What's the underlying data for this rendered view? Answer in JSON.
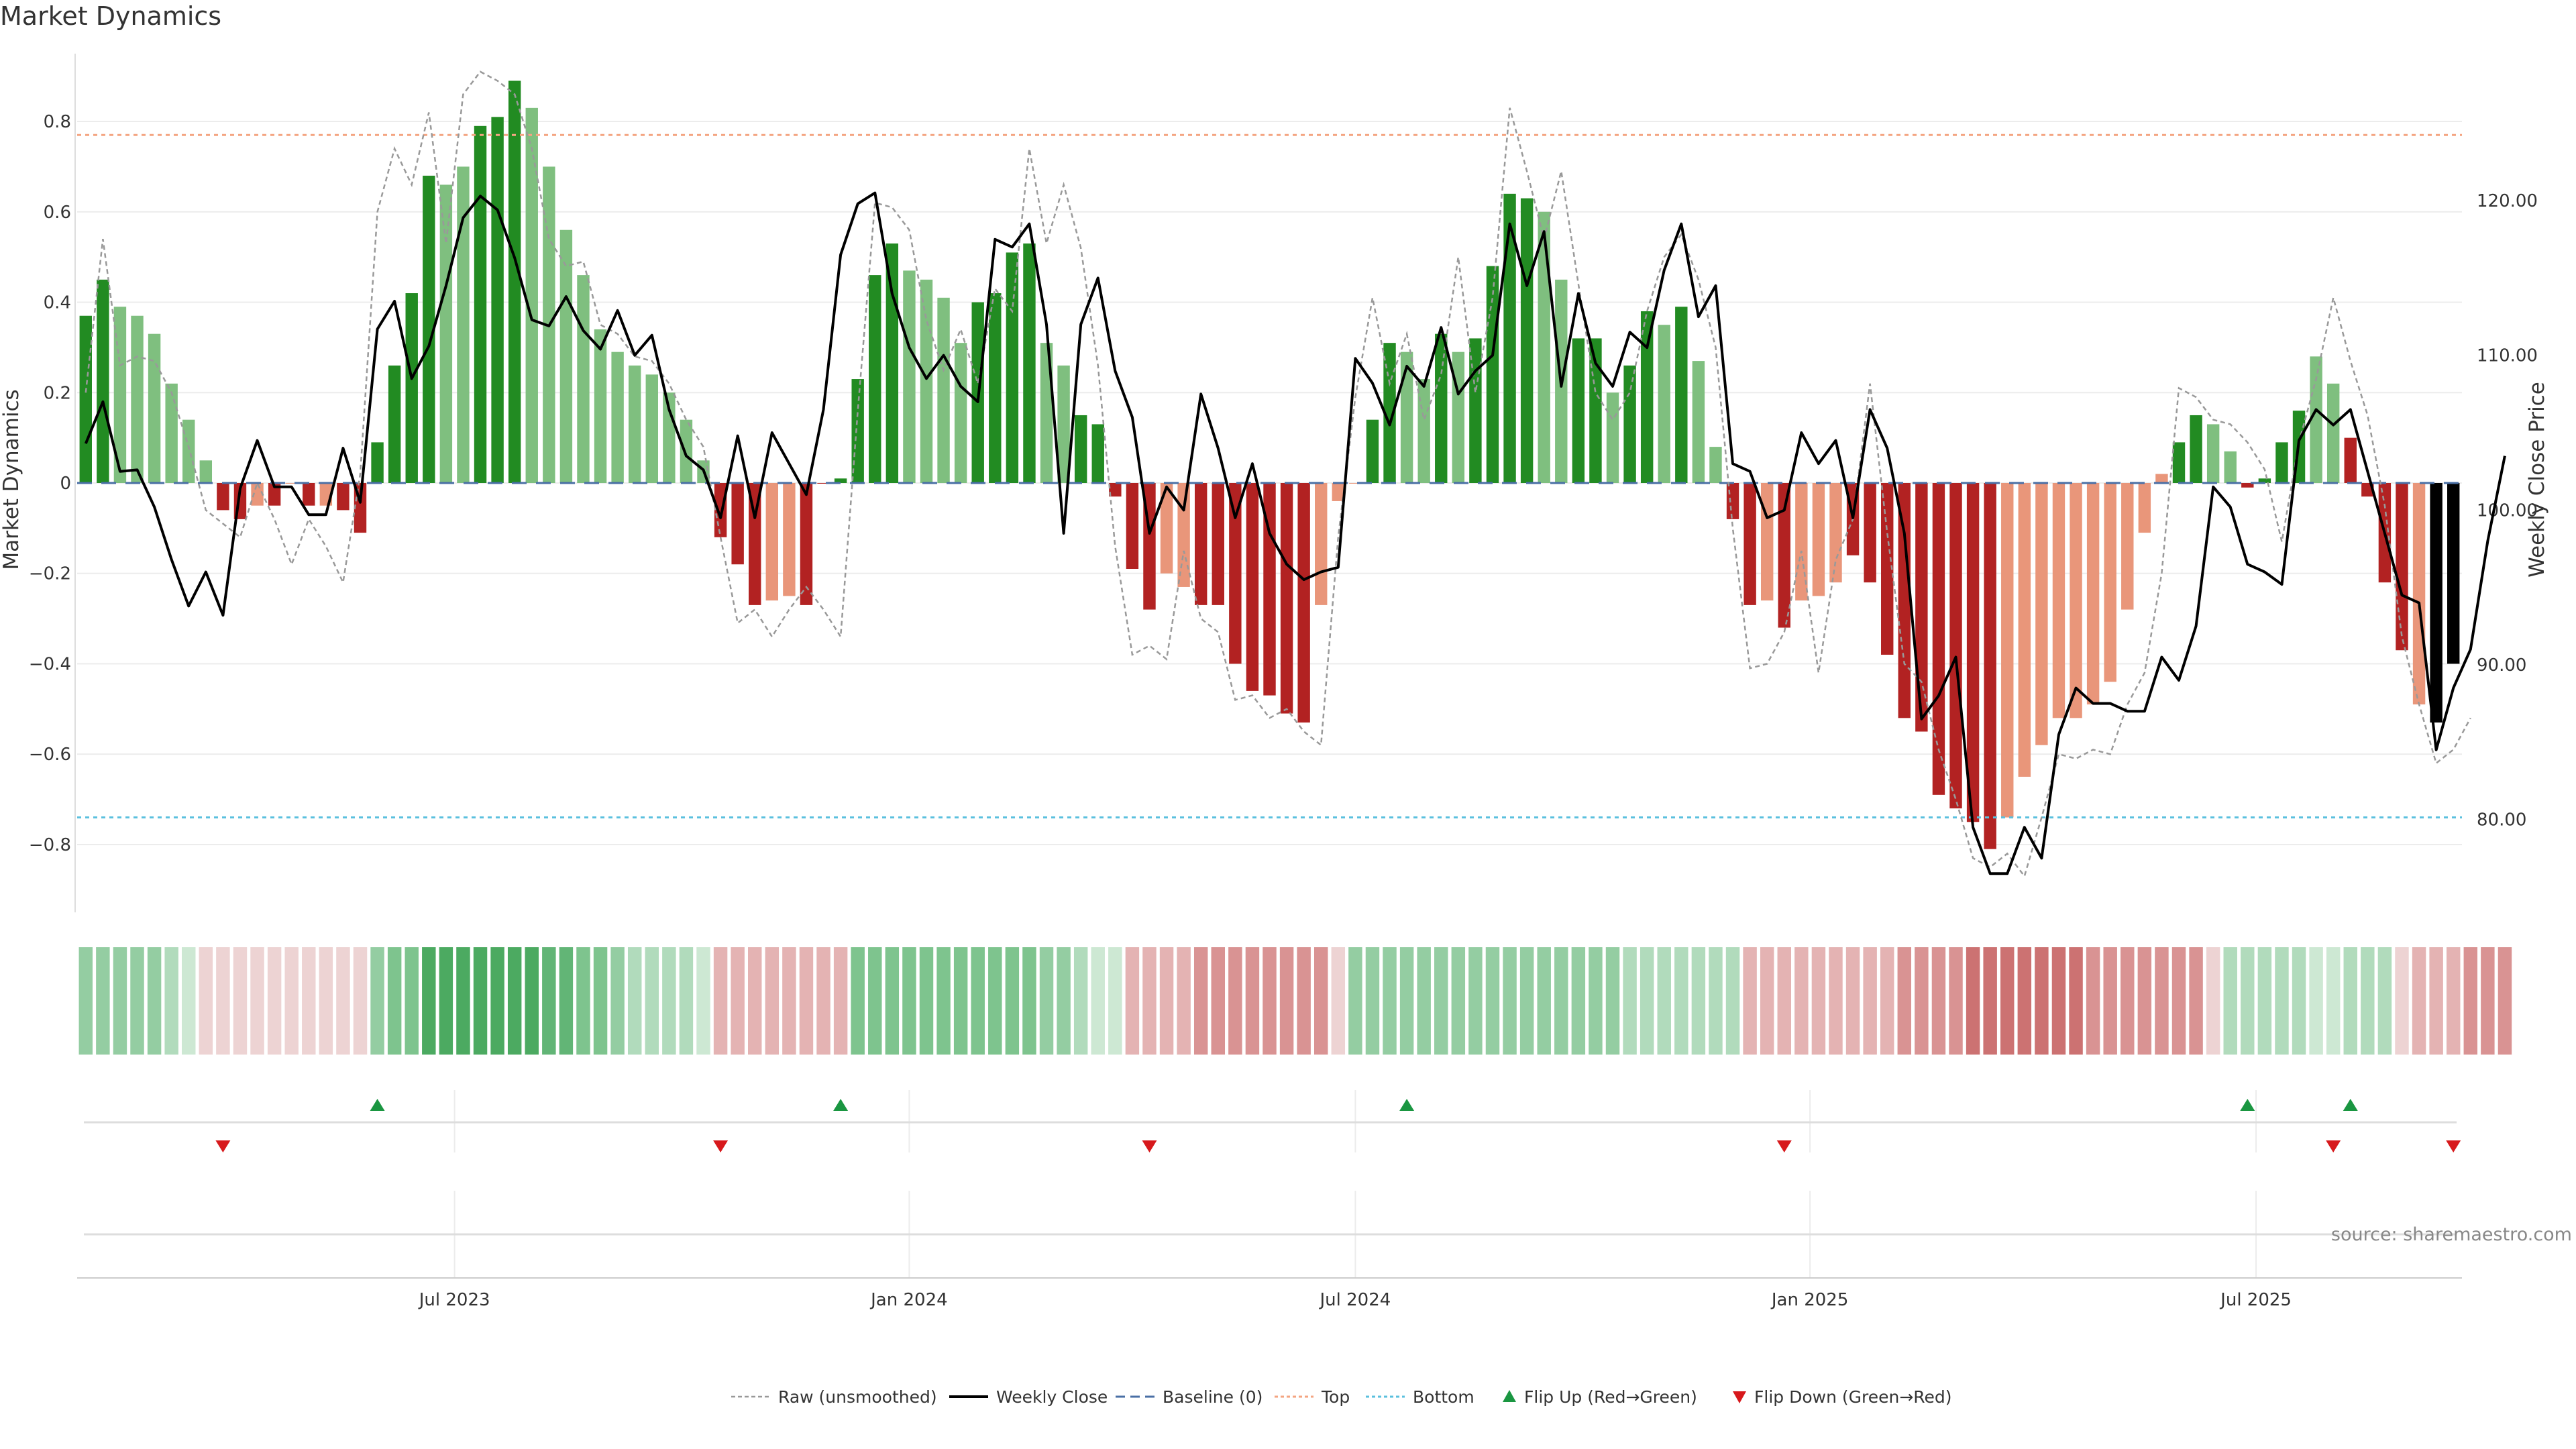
{
  "chart_data": {
    "type": "bar",
    "title": "Market Dynamics",
    "ylabel_left": "Market Dynamics",
    "ylabel_right": "Weekly Close Price",
    "ylim_left": [
      -0.95,
      0.95
    ],
    "ylim_right": [
      74.0,
      129.5
    ],
    "yticks_left": [
      -0.8,
      -0.6,
      -0.4,
      -0.2,
      0,
      0.2,
      0.4,
      0.6,
      0.8
    ],
    "ytick_labels_left": [
      "−0.8",
      "−0.6",
      "−0.4",
      "−0.2",
      "0",
      "0.2",
      "0.4",
      "0.6",
      "0.8"
    ],
    "yticks_right": [
      80,
      90,
      100,
      110,
      120
    ],
    "ytick_labels_right": [
      "80.00",
      "90.00",
      "100.00",
      "110.00",
      "120.00"
    ],
    "x_tick_index": [
      21.5,
      48,
      74,
      100.5,
      126.5
    ],
    "x_tick_labels": [
      "Jul 2023",
      "Jan 2024",
      "Jul 2024",
      "Jan 2025",
      "Jul 2025"
    ],
    "top_line": 0.77,
    "bottom_line": -0.74,
    "baseline": 0,
    "momentum": [
      0.37,
      0.45,
      0.39,
      0.37,
      0.33,
      0.22,
      0.14,
      0.05,
      -0.06,
      -0.08,
      -0.05,
      -0.05,
      0.0,
      -0.05,
      -0.05,
      -0.06,
      -0.11,
      0.09,
      0.26,
      0.42,
      0.68,
      0.66,
      0.7,
      0.79,
      0.81,
      0.89,
      0.83,
      0.7,
      0.56,
      0.46,
      0.34,
      0.29,
      0.26,
      0.24,
      0.2,
      0.14,
      0.05,
      -0.12,
      -0.18,
      -0.27,
      -0.26,
      -0.25,
      -0.27,
      0.0,
      0.01,
      0.23,
      0.46,
      0.53,
      0.47,
      0.45,
      0.41,
      0.31,
      0.4,
      0.42,
      0.51,
      0.53,
      0.31,
      0.26,
      0.15,
      0.13,
      -0.03,
      -0.19,
      -0.28,
      -0.2,
      -0.23,
      -0.27,
      -0.27,
      -0.4,
      -0.46,
      -0.47,
      -0.51,
      -0.53,
      -0.27,
      -0.04,
      0.0,
      0.14,
      0.31,
      0.29,
      0.23,
      0.33,
      0.29,
      0.32,
      0.48,
      0.64,
      0.63,
      0.6,
      0.45,
      0.32,
      0.32,
      0.2,
      0.26,
      0.38,
      0.35,
      0.39,
      0.27,
      0.08,
      -0.08,
      -0.27,
      -0.26,
      -0.32,
      -0.26,
      -0.25,
      -0.22,
      -0.16,
      -0.22,
      -0.38,
      -0.52,
      -0.55,
      -0.69,
      -0.72,
      -0.75,
      -0.81,
      -0.74,
      -0.65,
      -0.58,
      -0.52,
      -0.52,
      -0.49,
      -0.44,
      -0.28,
      -0.11,
      0.02,
      0.09,
      0.15,
      0.13,
      0.07,
      -0.01,
      0.01,
      0.09,
      0.16,
      0.28,
      0.22,
      0.1,
      -0.03,
      -0.22,
      -0.37,
      -0.49,
      -0.53,
      -0.4
    ],
    "state": [
      "G",
      "G",
      "L",
      "L",
      "L",
      "L",
      "L",
      "L",
      "R",
      "R",
      "P",
      "R",
      "P",
      "R",
      "P",
      "R",
      "R",
      "G",
      "G",
      "G",
      "G",
      "L",
      "L",
      "G",
      "G",
      "G",
      "L",
      "L",
      "L",
      "L",
      "L",
      "L",
      "L",
      "L",
      "L",
      "L",
      "L",
      "R",
      "R",
      "R",
      "P",
      "P",
      "R",
      "R",
      "G",
      "G",
      "G",
      "G",
      "L",
      "L",
      "L",
      "L",
      "G",
      "G",
      "G",
      "G",
      "L",
      "L",
      "G",
      "G",
      "R",
      "R",
      "R",
      "P",
      "P",
      "R",
      "R",
      "R",
      "R",
      "R",
      "R",
      "R",
      "P",
      "P",
      "P",
      "G",
      "G",
      "L",
      "L",
      "G",
      "L",
      "G",
      "G",
      "G",
      "G",
      "L",
      "L",
      "G",
      "G",
      "L",
      "G",
      "G",
      "L",
      "G",
      "L",
      "L",
      "R",
      "R",
      "P",
      "R",
      "P",
      "P",
      "P",
      "R",
      "R",
      "R",
      "R",
      "R",
      "R",
      "R",
      "R",
      "R",
      "P",
      "P",
      "P",
      "P",
      "P",
      "P",
      "P",
      "P",
      "P",
      "P",
      "G",
      "G",
      "L",
      "L",
      "R",
      "G",
      "G",
      "G",
      "L",
      "L",
      "R",
      "R",
      "R",
      "R",
      "P"
    ],
    "raw": [
      0.2,
      0.54,
      0.26,
      0.28,
      0.27,
      0.2,
      0.08,
      -0.06,
      -0.09,
      -0.12,
      0.0,
      -0.08,
      -0.18,
      -0.08,
      -0.14,
      -0.22,
      0.02,
      0.6,
      0.74,
      0.66,
      0.82,
      0.53,
      0.86,
      0.91,
      0.89,
      0.86,
      0.74,
      0.54,
      0.48,
      0.49,
      0.35,
      0.33,
      0.28,
      0.27,
      0.22,
      0.14,
      0.08,
      -0.12,
      -0.31,
      -0.28,
      -0.34,
      -0.28,
      -0.23,
      -0.28,
      -0.34,
      0.16,
      0.62,
      0.61,
      0.56,
      0.36,
      0.25,
      0.34,
      0.22,
      0.43,
      0.38,
      0.74,
      0.53,
      0.66,
      0.52,
      0.26,
      -0.14,
      -0.38,
      -0.36,
      -0.39,
      -0.15,
      -0.3,
      -0.33,
      -0.48,
      -0.47,
      -0.52,
      -0.5,
      -0.55,
      -0.58,
      -0.12,
      0.19,
      0.41,
      0.22,
      0.33,
      0.14,
      0.24,
      0.5,
      0.2,
      0.41,
      0.83,
      0.69,
      0.54,
      0.69,
      0.44,
      0.2,
      0.14,
      0.2,
      0.38,
      0.5,
      0.55,
      0.45,
      0.3,
      -0.1,
      -0.41,
      -0.4,
      -0.33,
      -0.15,
      -0.42,
      -0.17,
      -0.08,
      0.22,
      -0.11,
      -0.4,
      -0.44,
      -0.59,
      -0.7,
      -0.83,
      -0.85,
      -0.82,
      -0.87,
      -0.74,
      -0.6,
      -0.61,
      -0.59,
      -0.6,
      -0.49,
      -0.42,
      -0.2,
      0.21,
      0.19,
      0.14,
      0.13,
      0.09,
      0.03,
      -0.13,
      0.09,
      0.23,
      0.41,
      0.27,
      0.15,
      -0.05,
      -0.34,
      -0.49,
      -0.62,
      -0.59,
      -0.52
    ],
    "close": [
      104.3,
      107.0,
      102.5,
      102.6,
      100.2,
      96.8,
      93.8,
      96.0,
      93.2,
      101.4,
      104.5,
      101.5,
      101.5,
      99.7,
      99.7,
      104.0,
      100.5,
      111.7,
      113.5,
      108.5,
      110.6,
      114.5,
      118.9,
      120.3,
      119.4,
      116.3,
      112.3,
      111.9,
      113.8,
      111.6,
      110.4,
      112.9,
      110.0,
      111.3,
      106.5,
      103.5,
      102.6,
      99.5,
      104.8,
      99.5,
      105.0,
      103.0,
      101.0,
      106.5,
      116.5,
      119.8,
      120.5,
      114.0,
      110.5,
      108.5,
      110.0,
      108.0,
      107.0,
      117.5,
      117.0,
      118.5,
      112.0,
      98.5,
      112.0,
      115.0,
      109.0,
      106.0,
      98.5,
      101.5,
      100.0,
      107.5,
      104.0,
      99.5,
      103.0,
      98.5,
      96.5,
      95.5,
      96.0,
      96.3,
      109.8,
      108.2,
      105.5,
      109.3,
      108.0,
      111.8,
      107.5,
      109.0,
      110.0,
      118.5,
      114.5,
      118.0,
      108.0,
      114.0,
      109.5,
      108.0,
      111.5,
      110.5,
      115.5,
      118.5,
      112.5,
      114.5,
      103.0,
      102.5,
      99.5,
      100.0,
      105.0,
      103.0,
      104.5,
      99.5,
      106.5,
      104.0,
      98.5,
      86.5,
      88.0,
      90.5,
      79.5,
      76.5,
      76.5,
      79.5,
      77.5,
      85.5,
      88.5,
      87.5,
      87.5,
      87.0,
      87.0,
      90.5,
      89.0,
      92.5,
      101.5,
      100.2,
      96.5,
      96.0,
      95.2,
      104.5,
      106.5,
      105.5,
      106.5,
      102.5,
      98.5,
      94.5,
      94.0,
      84.5,
      88.5,
      91.0,
      98.0,
      103.5
    ],
    "strip": [
      "g3",
      "g3",
      "g3",
      "g3",
      "g3",
      "g2",
      "g1",
      "n1",
      "n1",
      "n1",
      "n1",
      "n1",
      "n1",
      "n1",
      "n1",
      "n1",
      "n1",
      "g3",
      "g4",
      "g4",
      "g6",
      "g6",
      "g6",
      "g6",
      "g6",
      "g6",
      "g6",
      "g5",
      "g5",
      "g4",
      "g4",
      "g3",
      "g2",
      "g2",
      "g2",
      "g2",
      "g1",
      "r2",
      "r2",
      "r2",
      "r2",
      "r2",
      "r2",
      "r2",
      "r2",
      "g4",
      "g4",
      "g4",
      "g4",
      "g4",
      "g4",
      "g4",
      "g4",
      "g4",
      "g4",
      "g4",
      "g3",
      "g3",
      "g2",
      "g1",
      "g1",
      "r2",
      "r2",
      "r2",
      "r2",
      "r3",
      "r3",
      "r3",
      "r3",
      "r3",
      "r3",
      "r3",
      "r3",
      "n1",
      "g3",
      "g3",
      "g3",
      "g3",
      "g3",
      "g3",
      "g3",
      "g3",
      "g3",
      "g3",
      "g3",
      "g3",
      "g3",
      "g3",
      "g3",
      "g3",
      "g2",
      "g2",
      "g2",
      "g2",
      "g2",
      "g2",
      "g2",
      "r2",
      "r2",
      "r2",
      "r2",
      "r2",
      "r2",
      "r2",
      "r2",
      "r2",
      "r3",
      "r3",
      "r3",
      "r3",
      "r4",
      "r4",
      "r4",
      "r4",
      "r4",
      "r4",
      "r4",
      "r3",
      "r3",
      "r3",
      "r3",
      "r3",
      "r3",
      "r3",
      "n1",
      "g2",
      "g2",
      "g2",
      "g2",
      "g2",
      "g1",
      "g1",
      "g2",
      "g2",
      "g2",
      "n1",
      "r2",
      "r2",
      "r2",
      "r3",
      "r3",
      "r3"
    ],
    "flip_up_index": [
      17,
      44,
      77,
      126,
      132
    ],
    "flip_down_index": [
      8,
      37,
      62,
      99,
      131,
      138
    ],
    "legend": [
      {
        "key": "raw",
        "label": "Raw (unsmoothed)"
      },
      {
        "key": "close",
        "label": "Weekly Close"
      },
      {
        "key": "baseline",
        "label": "Baseline (0)"
      },
      {
        "key": "top",
        "label": "Top"
      },
      {
        "key": "bottom",
        "label": "Bottom"
      },
      {
        "key": "flip_up",
        "label": "Flip Up (Red→Green)"
      },
      {
        "key": "flip_down",
        "label": "Flip Down (Green→Red)"
      }
    ],
    "source": "source: sharemaestro.com",
    "colors": {
      "G": "#228b22",
      "L": "#7fbf7f",
      "R": "#b22222",
      "P": "#e9967a",
      "raw": "#999999",
      "close": "#000000",
      "baseline": "#4a6fa5",
      "top": "#f4a582",
      "bottom": "#5bc0de",
      "flip_up": "#1a9641",
      "flip_down": "#d7191c",
      "g1": "#cde8d3",
      "g2": "#b1dbbc",
      "g3": "#94cda2",
      "g4": "#7ec48e",
      "g5": "#62b576",
      "g6": "#4caa61",
      "n1": "#edd3d3",
      "r2": "#e4b3b3",
      "r3": "#d99393",
      "r4": "#cc7272"
    }
  }
}
